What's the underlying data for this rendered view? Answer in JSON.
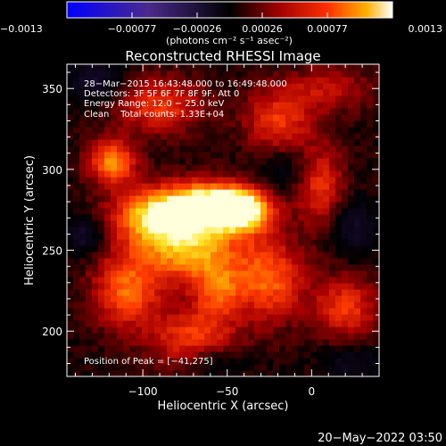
{
  "chart_data": {
    "type": "heatmap",
    "title": "Reconstructed RHESSI Image",
    "xlabel": "Heliocentric X (arcsec)",
    "ylabel": "Heliocentric Y (arcsec)",
    "xlim": [
      -145,
      40
    ],
    "ylim": [
      172,
      365
    ],
    "xticks": [
      -100,
      -50,
      0
    ],
    "xtick_labels": [
      "−100",
      "−50",
      "0"
    ],
    "yticks": [
      200,
      250,
      300,
      350
    ],
    "ytick_labels": [
      "200",
      "250",
      "300",
      "350"
    ],
    "colorbar": {
      "range": [
        -0.0013,
        0.0013
      ],
      "ticks": [
        "−0.0013",
        "−0.00077",
        "−0.00026",
        "0.00026",
        "0.00077",
        "0.0013"
      ],
      "unit_label": "(photons cm⁻² s⁻¹ asec⁻²)"
    },
    "annotations": [
      "28−Mar−2015 16:43:48.000 to 16:49:48.000",
      "Detectors: 3F 5F 6F 7F 8F 9F, Att 0",
      "Energy Range: 12.0 − 25.0 keV",
      "Clean    Total counts: 1.33E+04"
    ],
    "peak_label": "Position of Peak = [−41,275]",
    "blobs": [
      {
        "x": -40,
        "y": 275,
        "sx": 12,
        "sy": 9,
        "a": 1.0
      },
      {
        "x": -62,
        "y": 278,
        "sx": 16,
        "sy": 10,
        "a": 0.95
      },
      {
        "x": -92,
        "y": 272,
        "sx": 18,
        "sy": 12,
        "a": 0.8
      },
      {
        "x": -72,
        "y": 250,
        "sx": 22,
        "sy": 14,
        "a": 0.7
      },
      {
        "x": -118,
        "y": 305,
        "sx": 10,
        "sy": 10,
        "a": 0.65
      },
      {
        "x": -110,
        "y": 225,
        "sx": 14,
        "sy": 16,
        "a": 0.55
      },
      {
        "x": -70,
        "y": 195,
        "sx": 18,
        "sy": 14,
        "a": 0.5
      },
      {
        "x": -25,
        "y": 232,
        "sx": 14,
        "sy": 18,
        "a": 0.55
      },
      {
        "x": -20,
        "y": 330,
        "sx": 14,
        "sy": 14,
        "a": 0.45
      },
      {
        "x": 5,
        "y": 290,
        "sx": 10,
        "sy": 18,
        "a": 0.45
      },
      {
        "x": -90,
        "y": 340,
        "sx": 18,
        "sy": 12,
        "a": 0.45
      },
      {
        "x": 20,
        "y": 215,
        "sx": 14,
        "sy": 14,
        "a": 0.45
      },
      {
        "x": -55,
        "y": 225,
        "sx": 10,
        "sy": 12,
        "a": 0.45
      },
      {
        "x": 10,
        "y": 350,
        "sx": 18,
        "sy": 10,
        "a": 0.3
      },
      {
        "x": -135,
        "y": 260,
        "sx": 8,
        "sy": 8,
        "a": -0.35
      },
      {
        "x": -128,
        "y": 355,
        "sx": 12,
        "sy": 8,
        "a": -0.35
      },
      {
        "x": -60,
        "y": 182,
        "sx": 14,
        "sy": 8,
        "a": -0.3
      },
      {
        "x": 25,
        "y": 265,
        "sx": 10,
        "sy": 12,
        "a": -0.3
      },
      {
        "x": 25,
        "y": 180,
        "sx": 12,
        "sy": 8,
        "a": -0.25
      },
      {
        "x": -15,
        "y": 300,
        "sx": 12,
        "sy": 10,
        "a": -0.2
      }
    ]
  },
  "footer": {
    "timestamp": "20−May−2022 03:50"
  }
}
